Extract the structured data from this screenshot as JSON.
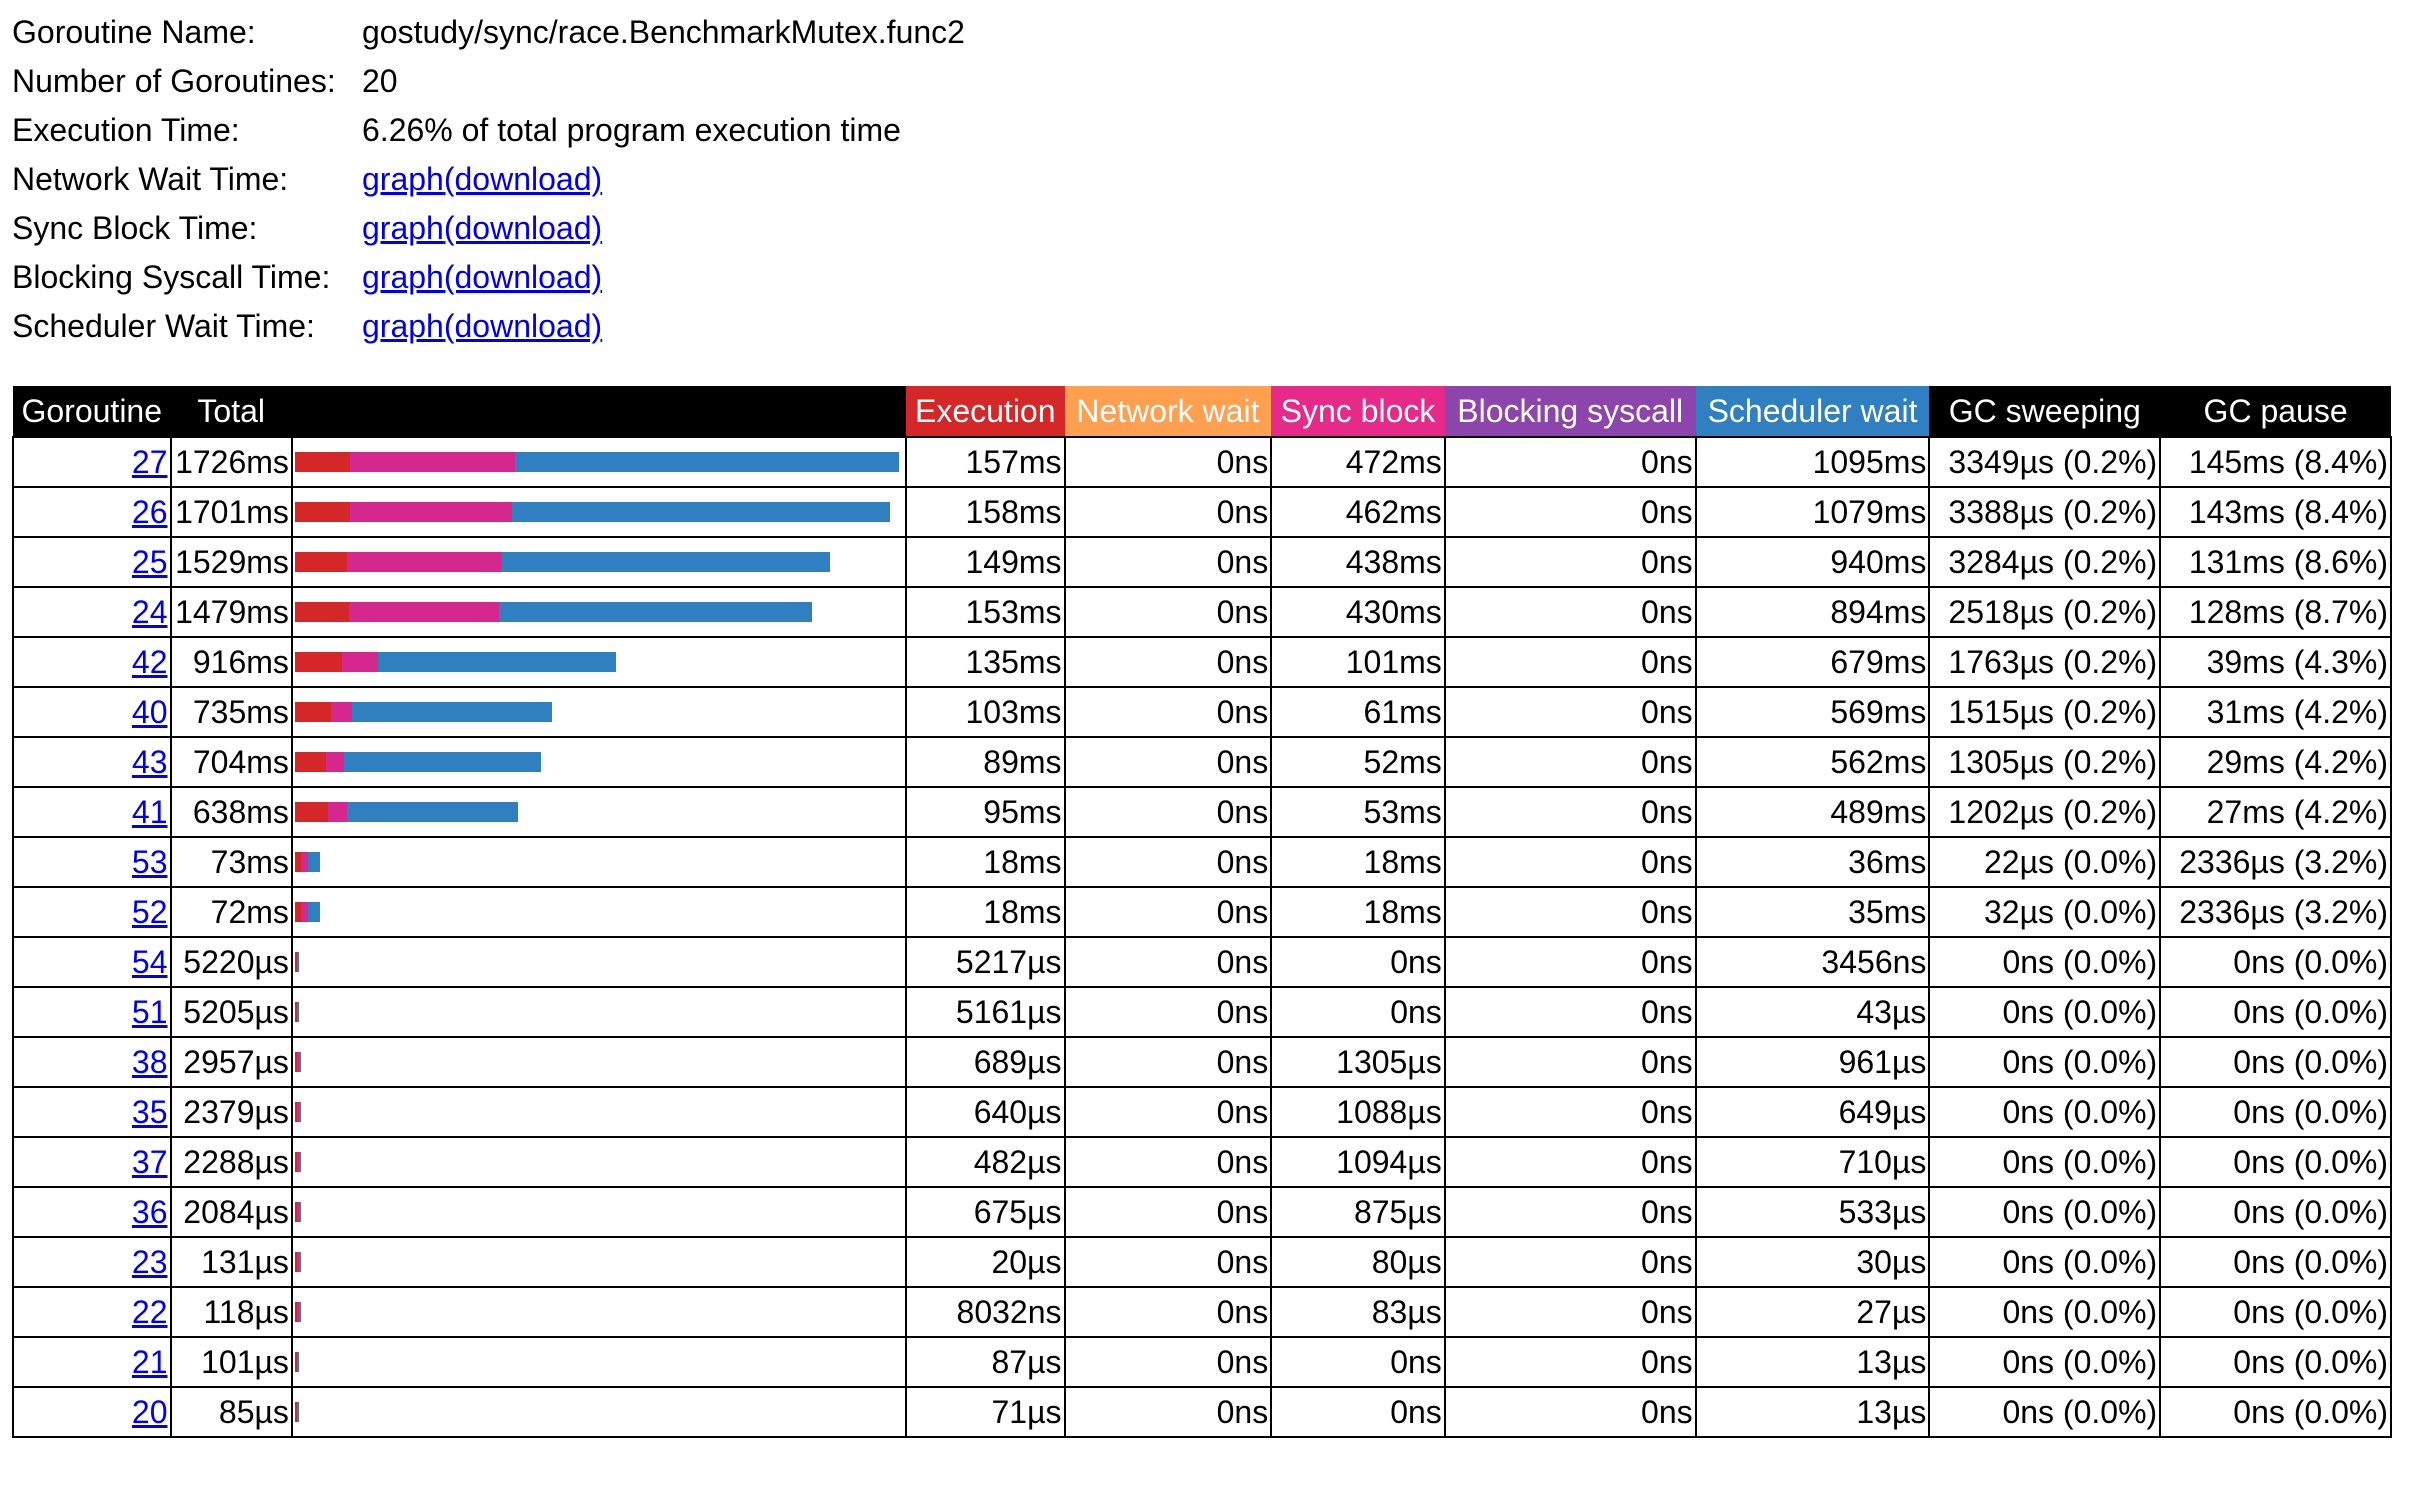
{
  "info": {
    "rows": [
      {
        "label": "Goroutine Name:",
        "value": "gostudy/sync/race.BenchmarkMutex.func2"
      },
      {
        "label": "Number of Goroutines:",
        "value": "20"
      },
      {
        "label": "Execution Time:",
        "value": "6.26% of total program execution time"
      },
      {
        "label": "Network Wait Time:",
        "link": "graph",
        "link2": "(download)"
      },
      {
        "label": "Sync Block Time:",
        "link": "graph",
        "link2": "(download)"
      },
      {
        "label": "Blocking Syscall Time:",
        "link": "graph",
        "link2": "(download)"
      },
      {
        "label": "Scheduler Wait Time:",
        "link": "graph",
        "link2": "(download)"
      }
    ]
  },
  "colors": {
    "execution": "#d62728",
    "network_wait": "#ff9f4f",
    "sync_block": "#e7298a",
    "blocking_syscall": "#8e44ad",
    "scheduler_wait": "#2f7fc1"
  },
  "table": {
    "headers": {
      "goroutine": "Goroutine",
      "total": "Total",
      "bar": "",
      "execution": "Execution",
      "network_wait": "Network wait",
      "sync_block": "Sync block",
      "blocking_syscall": "Blocking syscall",
      "scheduler_wait": "Scheduler wait",
      "gc_sweeping": "GC sweeping",
      "gc_pause": "GC pause"
    },
    "rows": [
      {
        "id": "27",
        "total": "1726ms",
        "exec": "157ms",
        "net": "0ns",
        "sync": "472ms",
        "sys": "0ns",
        "sched": "1095ms",
        "sweep": "3349µs (0.2%)",
        "pause": "145ms (8.4%)",
        "bar": {
          "exec": 157,
          "sync": 472,
          "sched": 1095
        }
      },
      {
        "id": "26",
        "total": "1701ms",
        "exec": "158ms",
        "net": "0ns",
        "sync": "462ms",
        "sys": "0ns",
        "sched": "1079ms",
        "sweep": "3388µs (0.2%)",
        "pause": "143ms (8.4%)",
        "bar": {
          "exec": 158,
          "sync": 462,
          "sched": 1079
        }
      },
      {
        "id": "25",
        "total": "1529ms",
        "exec": "149ms",
        "net": "0ns",
        "sync": "438ms",
        "sys": "0ns",
        "sched": "940ms",
        "sweep": "3284µs (0.2%)",
        "pause": "131ms (8.6%)",
        "bar": {
          "exec": 149,
          "sync": 438,
          "sched": 940
        }
      },
      {
        "id": "24",
        "total": "1479ms",
        "exec": "153ms",
        "net": "0ns",
        "sync": "430ms",
        "sys": "0ns",
        "sched": "894ms",
        "sweep": "2518µs (0.2%)",
        "pause": "128ms (8.7%)",
        "bar": {
          "exec": 153,
          "sync": 430,
          "sched": 894
        }
      },
      {
        "id": "42",
        "total": "916ms",
        "exec": "135ms",
        "net": "0ns",
        "sync": "101ms",
        "sys": "0ns",
        "sched": "679ms",
        "sweep": "1763µs (0.2%)",
        "pause": "39ms (4.3%)",
        "bar": {
          "exec": 135,
          "sync": 101,
          "sched": 679
        }
      },
      {
        "id": "40",
        "total": "735ms",
        "exec": "103ms",
        "net": "0ns",
        "sync": "61ms",
        "sys": "0ns",
        "sched": "569ms",
        "sweep": "1515µs (0.2%)",
        "pause": "31ms (4.2%)",
        "bar": {
          "exec": 103,
          "sync": 61,
          "sched": 569
        }
      },
      {
        "id": "43",
        "total": "704ms",
        "exec": "89ms",
        "net": "0ns",
        "sync": "52ms",
        "sys": "0ns",
        "sched": "562ms",
        "sweep": "1305µs (0.2%)",
        "pause": "29ms (4.2%)",
        "bar": {
          "exec": 89,
          "sync": 52,
          "sched": 562
        }
      },
      {
        "id": "41",
        "total": "638ms",
        "exec": "95ms",
        "net": "0ns",
        "sync": "53ms",
        "sys": "0ns",
        "sched": "489ms",
        "sweep": "1202µs (0.2%)",
        "pause": "27ms (4.2%)",
        "bar": {
          "exec": 95,
          "sync": 53,
          "sched": 489
        }
      },
      {
        "id": "53",
        "total": "73ms",
        "exec": "18ms",
        "net": "0ns",
        "sync": "18ms",
        "sys": "0ns",
        "sched": "36ms",
        "sweep": "22µs (0.0%)",
        "pause": "2336µs (3.2%)",
        "bar": {
          "exec": 18,
          "sync": 18,
          "sched": 36
        }
      },
      {
        "id": "52",
        "total": "72ms",
        "exec": "18ms",
        "net": "0ns",
        "sync": "18ms",
        "sys": "0ns",
        "sched": "35ms",
        "sweep": "32µs (0.0%)",
        "pause": "2336µs (3.2%)",
        "bar": {
          "exec": 18,
          "sync": 18,
          "sched": 35
        }
      },
      {
        "id": "54",
        "total": "5220µs",
        "exec": "5217µs",
        "net": "0ns",
        "sync": "0ns",
        "sys": "0ns",
        "sched": "3456ns",
        "sweep": "0ns (0.0%)",
        "pause": "0ns (0.0%)",
        "bar": {
          "exec": 5.217,
          "sync": 0,
          "sched": 0.003456
        }
      },
      {
        "id": "51",
        "total": "5205µs",
        "exec": "5161µs",
        "net": "0ns",
        "sync": "0ns",
        "sys": "0ns",
        "sched": "43µs",
        "sweep": "0ns (0.0%)",
        "pause": "0ns (0.0%)",
        "bar": {
          "exec": 5.161,
          "sync": 0,
          "sched": 0.043
        }
      },
      {
        "id": "38",
        "total": "2957µs",
        "exec": "689µs",
        "net": "0ns",
        "sync": "1305µs",
        "sys": "0ns",
        "sched": "961µs",
        "sweep": "0ns (0.0%)",
        "pause": "0ns (0.0%)",
        "bar": {
          "exec": 0.689,
          "sync": 1.305,
          "sched": 0.961
        }
      },
      {
        "id": "35",
        "total": "2379µs",
        "exec": "640µs",
        "net": "0ns",
        "sync": "1088µs",
        "sys": "0ns",
        "sched": "649µs",
        "sweep": "0ns (0.0%)",
        "pause": "0ns (0.0%)",
        "bar": {
          "exec": 0.64,
          "sync": 1.088,
          "sched": 0.649
        }
      },
      {
        "id": "37",
        "total": "2288µs",
        "exec": "482µs",
        "net": "0ns",
        "sync": "1094µs",
        "sys": "0ns",
        "sched": "710µs",
        "sweep": "0ns (0.0%)",
        "pause": "0ns (0.0%)",
        "bar": {
          "exec": 0.482,
          "sync": 1.094,
          "sched": 0.71
        }
      },
      {
        "id": "36",
        "total": "2084µs",
        "exec": "675µs",
        "net": "0ns",
        "sync": "875µs",
        "sys": "0ns",
        "sched": "533µs",
        "sweep": "0ns (0.0%)",
        "pause": "0ns (0.0%)",
        "bar": {
          "exec": 0.675,
          "sync": 0.875,
          "sched": 0.533
        }
      },
      {
        "id": "23",
        "total": "131µs",
        "exec": "20µs",
        "net": "0ns",
        "sync": "80µs",
        "sys": "0ns",
        "sched": "30µs",
        "sweep": "0ns (0.0%)",
        "pause": "0ns (0.0%)",
        "bar": {
          "exec": 0.02,
          "sync": 0.08,
          "sched": 0.03
        }
      },
      {
        "id": "22",
        "total": "118µs",
        "exec": "8032ns",
        "net": "0ns",
        "sync": "83µs",
        "sys": "0ns",
        "sched": "27µs",
        "sweep": "0ns (0.0%)",
        "pause": "0ns (0.0%)",
        "bar": {
          "exec": 0.008,
          "sync": 0.083,
          "sched": 0.027
        }
      },
      {
        "id": "21",
        "total": "101µs",
        "exec": "87µs",
        "net": "0ns",
        "sync": "0ns",
        "sys": "0ns",
        "sched": "13µs",
        "sweep": "0ns (0.0%)",
        "pause": "0ns (0.0%)",
        "bar": {
          "exec": 0.087,
          "sync": 0,
          "sched": 0.013
        }
      },
      {
        "id": "20",
        "total": "85µs",
        "exec": "71µs",
        "net": "0ns",
        "sync": "0ns",
        "sys": "0ns",
        "sched": "13µs",
        "sweep": "0ns (0.0%)",
        "pause": "0ns (0.0%)",
        "bar": {
          "exec": 0.071,
          "sync": 0,
          "sched": 0.013
        }
      }
    ]
  }
}
